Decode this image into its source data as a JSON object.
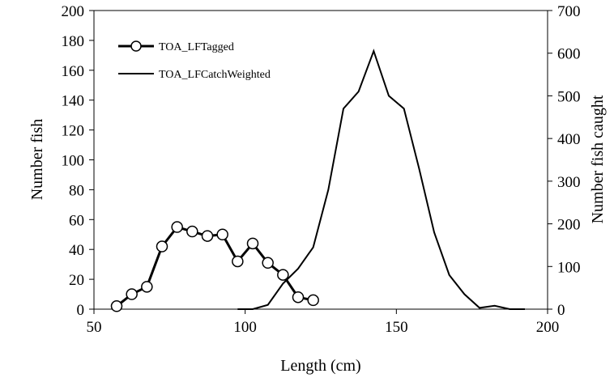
{
  "chart_data": {
    "type": "line",
    "xlabel": "Length (cm)",
    "ylabel": "Number fish",
    "y2label": "Number fish caught",
    "xlim": [
      50,
      200
    ],
    "ylim": [
      0,
      200
    ],
    "y2lim": [
      0,
      700
    ],
    "x_ticks": [
      "50",
      "100",
      "150",
      "200"
    ],
    "y_ticks": [
      "0",
      "20",
      "40",
      "60",
      "80",
      "100",
      "120",
      "140",
      "160",
      "180",
      "200"
    ],
    "y2_ticks": [
      "0",
      "100",
      "200",
      "300",
      "400",
      "500",
      "600",
      "700"
    ],
    "grid": false,
    "legend_position": "top-left",
    "series": [
      {
        "name": "TOA_LFTagged",
        "axis": "left",
        "marker": "circle",
        "color": "#000000",
        "x": [
          57.5,
          62.5,
          67.5,
          72.5,
          77.5,
          82.5,
          87.5,
          92.5,
          97.5,
          102.5,
          107.5,
          112.5,
          117.5,
          122.5
        ],
        "values": [
          2,
          10,
          15,
          42,
          55,
          52,
          49,
          50,
          32,
          44,
          31,
          23,
          8,
          6
        ]
      },
      {
        "name": "TOA_LFCatchWeighted",
        "axis": "right",
        "marker": "none",
        "color": "#000000",
        "x": [
          97.5,
          102.5,
          107.5,
          112.5,
          117.5,
          122.5,
          127.5,
          132.5,
          137.5,
          142.5,
          147.5,
          152.5,
          157.5,
          162.5,
          167.5,
          172.5,
          177.5,
          182.5,
          187.5,
          192.5
        ],
        "values": [
          0,
          0,
          10,
          60,
          95,
          145,
          280,
          470,
          510,
          605,
          500,
          470,
          330,
          180,
          80,
          35,
          3,
          8,
          0,
          0
        ]
      }
    ]
  }
}
